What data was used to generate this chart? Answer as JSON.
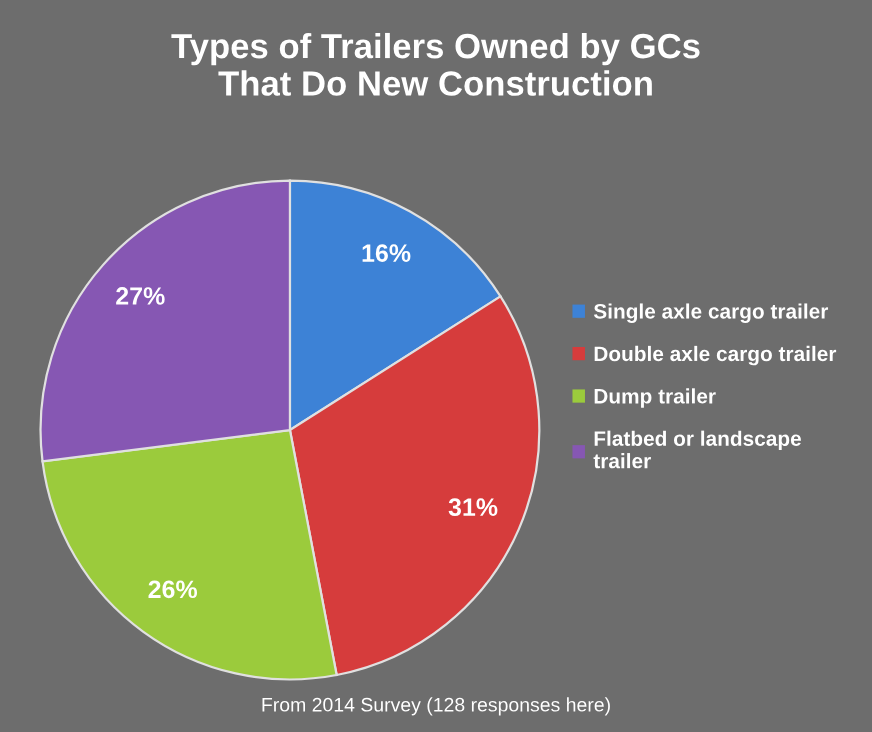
{
  "chart_data": {
    "type": "pie",
    "title": "Types of Trailers Owned by GCs\nThat Do New Construction",
    "categories": [
      "Single axle cargo trailer",
      "Double axle cargo trailer",
      "Dump trailer",
      "Flatbed or landscape trailer"
    ],
    "values": [
      16,
      31,
      26,
      27
    ],
    "colors": [
      "#3d82d6",
      "#d63c3c",
      "#9bcb3c",
      "#8657b3"
    ],
    "value_labels": [
      "16%",
      "31%",
      "26%",
      "27%"
    ],
    "legend": "right",
    "annotations": [
      "From 2014 Survey (128 responses here)"
    ]
  }
}
